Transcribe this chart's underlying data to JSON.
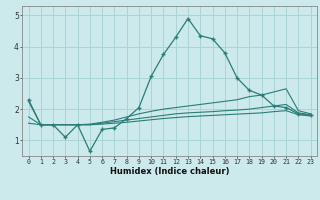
{
  "xlabel": "Humidex (Indice chaleur)",
  "ylabel": "",
  "bg_color": "#cce9eb",
  "grid_color": "#aad4d6",
  "line_color": "#2a7d78",
  "xlim": [
    -0.5,
    23.5
  ],
  "ylim": [
    0.5,
    5.3
  ],
  "yticks": [
    1,
    2,
    3,
    4,
    5
  ],
  "xticks": [
    0,
    1,
    2,
    3,
    4,
    5,
    6,
    7,
    8,
    9,
    10,
    11,
    12,
    13,
    14,
    15,
    16,
    17,
    18,
    19,
    20,
    21,
    22,
    23
  ],
  "series": [
    {
      "x": [
        0,
        1,
        2,
        3,
        4,
        5,
        6,
        7,
        8,
        9,
        10,
        11,
        12,
        13,
        14,
        15,
        16,
        17,
        18,
        19,
        20,
        21,
        22,
        23
      ],
      "y": [
        2.3,
        1.5,
        1.5,
        1.1,
        1.5,
        0.65,
        1.35,
        1.4,
        1.7,
        2.05,
        3.05,
        3.75,
        4.3,
        4.9,
        4.35,
        4.25,
        3.8,
        3.0,
        2.6,
        2.45,
        2.1,
        2.05,
        1.85,
        1.8
      ],
      "marker": true,
      "linestyle": "-"
    },
    {
      "x": [
        0,
        1,
        2,
        3,
        4,
        5,
        6,
        7,
        8,
        9,
        10,
        11,
        12,
        13,
        14,
        15,
        16,
        17,
        18,
        19,
        20,
        21,
        22,
        23
      ],
      "y": [
        2.25,
        1.5,
        1.5,
        1.5,
        1.5,
        1.52,
        1.58,
        1.65,
        1.75,
        1.85,
        1.93,
        2.0,
        2.05,
        2.1,
        2.15,
        2.2,
        2.25,
        2.3,
        2.4,
        2.45,
        2.55,
        2.65,
        1.95,
        1.85
      ],
      "marker": false,
      "linestyle": "-"
    },
    {
      "x": [
        0,
        1,
        2,
        3,
        4,
        5,
        6,
        7,
        8,
        9,
        10,
        11,
        12,
        13,
        14,
        15,
        16,
        17,
        18,
        19,
        20,
        21,
        22,
        23
      ],
      "y": [
        1.75,
        1.5,
        1.5,
        1.5,
        1.5,
        1.5,
        1.55,
        1.6,
        1.65,
        1.7,
        1.75,
        1.8,
        1.85,
        1.88,
        1.9,
        1.92,
        1.95,
        1.97,
        2.0,
        2.05,
        2.1,
        2.15,
        1.88,
        1.82
      ],
      "marker": false,
      "linestyle": "-"
    },
    {
      "x": [
        0,
        1,
        2,
        3,
        4,
        5,
        6,
        7,
        8,
        9,
        10,
        11,
        12,
        13,
        14,
        15,
        16,
        17,
        18,
        19,
        20,
        21,
        22,
        23
      ],
      "y": [
        1.55,
        1.5,
        1.5,
        1.5,
        1.5,
        1.5,
        1.52,
        1.55,
        1.58,
        1.62,
        1.66,
        1.7,
        1.73,
        1.76,
        1.78,
        1.8,
        1.82,
        1.84,
        1.86,
        1.88,
        1.92,
        1.95,
        1.82,
        1.78
      ],
      "marker": false,
      "linestyle": "-"
    }
  ]
}
